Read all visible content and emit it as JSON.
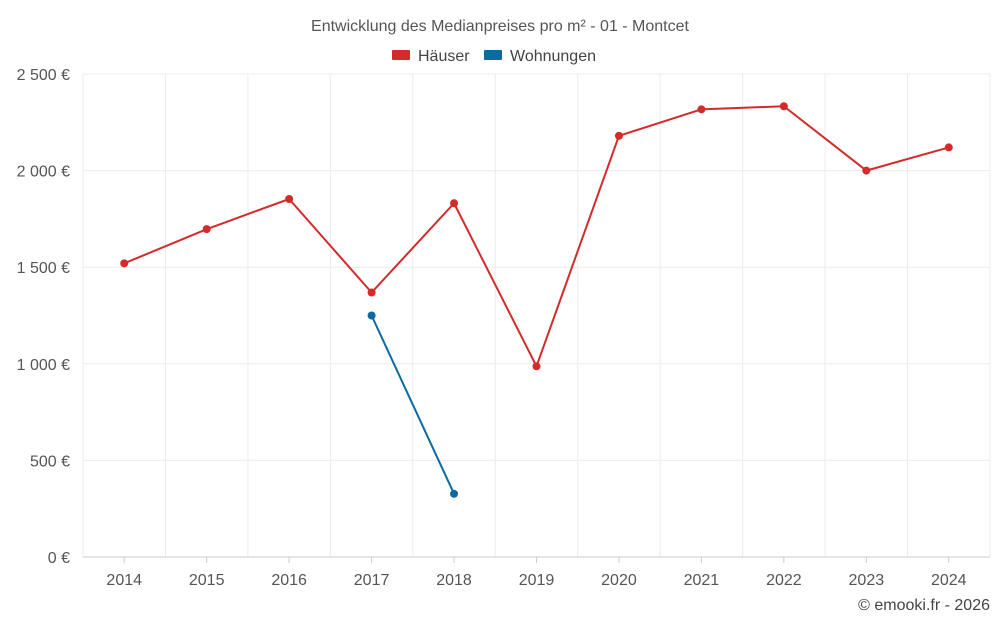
{
  "chart_data": {
    "type": "line",
    "title": "Entwicklung des Medianpreises pro m² - 01 - Montcet",
    "categories": [
      "2014",
      "2015",
      "2016",
      "2017",
      "2018",
      "2019",
      "2020",
      "2021",
      "2022",
      "2023",
      "2024"
    ],
    "series": [
      {
        "name": "Häuser",
        "color": "#d42a2a",
        "values": [
          1520,
          1697,
          1853,
          1369,
          1831,
          987,
          2180,
          2317,
          2333,
          2000,
          2120
        ]
      },
      {
        "name": "Wohnungen",
        "color": "#0b6aa2",
        "values": [
          null,
          null,
          null,
          1250,
          327,
          null,
          null,
          null,
          null,
          null,
          null
        ]
      }
    ],
    "ylim": [
      0,
      2500
    ],
    "yticks": [
      0,
      500,
      1000,
      1500,
      2000,
      2500
    ],
    "ytick_labels": [
      "0 €",
      "500 €",
      "1 000 €",
      "1 500 €",
      "2 000 €",
      "2 500 €"
    ],
    "xlabel": "",
    "ylabel": "",
    "grid": true,
    "legend_position": "top-center",
    "credit": "© emooki.fr - 2026"
  }
}
